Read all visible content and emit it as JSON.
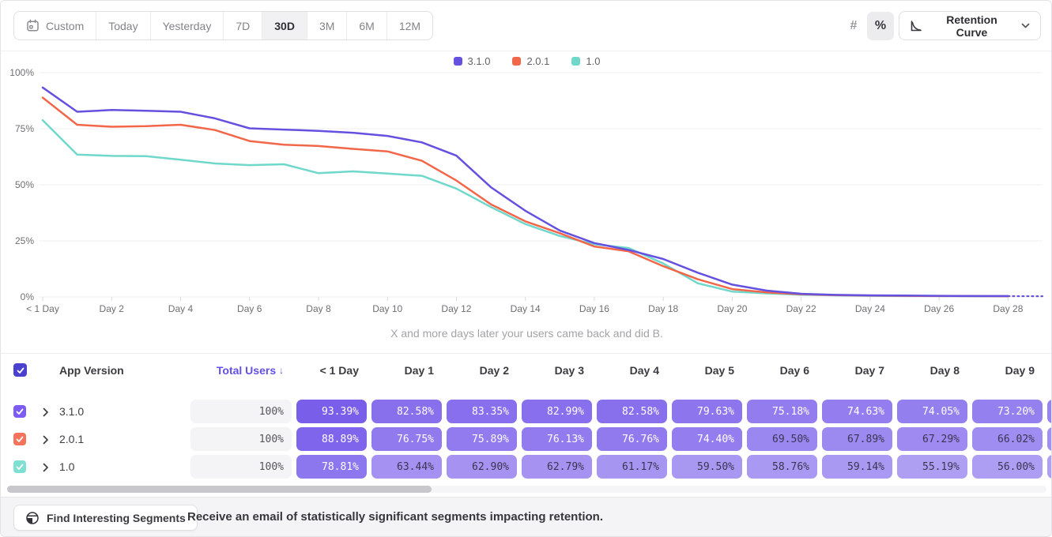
{
  "toolbar": {
    "date_ranges": [
      "Custom",
      "Today",
      "Yesterday",
      "7D",
      "30D",
      "3M",
      "6M",
      "12M"
    ],
    "selected_range": "30D",
    "unit_options": [
      "#",
      "%"
    ],
    "selected_unit": "%",
    "chart_type_label": "Retention Curve"
  },
  "chart_data": {
    "type": "line",
    "title": "",
    "caption": "X and more days later your users came back and did B.",
    "ylim": [
      0,
      100
    ],
    "y_tick_labels": [
      "0%",
      "25%",
      "50%",
      "75%",
      "100%"
    ],
    "x_tick_labels": [
      "< 1 Day",
      "Day 2",
      "Day 4",
      "Day 6",
      "Day 8",
      "Day 10",
      "Day 12",
      "Day 14",
      "Day 16",
      "Day 18",
      "Day 20",
      "Day 22",
      "Day 24",
      "Day 26",
      "Day 28"
    ],
    "x_label_every_n_days": 2,
    "num_days": 30,
    "grid": true,
    "legend_position": "top-center",
    "last_segment_dashed": true,
    "series": [
      {
        "name": "3.1.0",
        "color": "#6451E0",
        "values": [
          93.39,
          82.58,
          83.35,
          82.99,
          82.58,
          79.63,
          75.18,
          74.63,
          74.05,
          73.2,
          71.8,
          68.9,
          63.0,
          48.9,
          38.4,
          29.6,
          24.0,
          20.9,
          16.9,
          10.8,
          5.5,
          2.8,
          1.4,
          0.9,
          0.7,
          0.6,
          0.5,
          0.4,
          0.4,
          0.3
        ]
      },
      {
        "name": "2.0.1",
        "color": "#F2664A",
        "values": [
          88.89,
          76.75,
          75.89,
          76.13,
          76.76,
          74.4,
          69.5,
          67.89,
          67.29,
          66.02,
          64.9,
          60.7,
          51.9,
          41.3,
          33.7,
          28.4,
          22.5,
          20.3,
          13.7,
          7.9,
          3.5,
          2.0,
          1.2,
          0.8,
          0.6,
          0.5,
          0.4,
          0.4,
          0.3,
          0.3
        ]
      },
      {
        "name": "1.0",
        "color": "#70D8CB",
        "values": [
          78.81,
          63.44,
          62.9,
          62.79,
          61.17,
          59.5,
          58.76,
          59.14,
          55.19,
          56.0,
          55.0,
          54.0,
          48.3,
          40.1,
          32.5,
          27.2,
          23.5,
          21.8,
          14.9,
          6.1,
          2.4,
          1.6,
          1.0,
          0.7,
          0.5,
          0.4,
          0.4,
          0.3,
          0.3,
          0.3
        ]
      }
    ]
  },
  "table": {
    "app_version_header": "App Version",
    "total_users_header": "Total Users",
    "sort_indicator": "↓",
    "total_users_header_color": "#6350E8",
    "day_headers": [
      "< 1 Day",
      "Day 1",
      "Day 2",
      "Day 3",
      "Day 4",
      "Day 5",
      "Day 6",
      "Day 7",
      "Day 8",
      "Day 9"
    ],
    "header_checkbox_color": "#4B41CF",
    "cell_base_color_rgb": [
      111,
      82,
      233
    ],
    "rows": [
      {
        "version": "3.1.0",
        "checkbox_color": "#7C5CF5",
        "total_users": "100%",
        "retention": [
          "93.39%",
          "82.58%",
          "83.35%",
          "82.99%",
          "82.58%",
          "79.63%",
          "75.18%",
          "74.63%",
          "74.05%",
          "73.20%"
        ]
      },
      {
        "version": "2.0.1",
        "checkbox_color": "#F4735A",
        "total_users": "100%",
        "retention": [
          "88.89%",
          "76.75%",
          "75.89%",
          "76.13%",
          "76.76%",
          "74.40%",
          "69.50%",
          "67.89%",
          "67.29%",
          "66.02%"
        ]
      },
      {
        "version": "1.0",
        "checkbox_color": "#7EE0D2",
        "total_users": "100%",
        "retention": [
          "78.81%",
          "63.44%",
          "62.90%",
          "62.79%",
          "61.17%",
          "59.50%",
          "58.76%",
          "59.14%",
          "55.19%",
          "56.00%"
        ]
      }
    ]
  },
  "footer": {
    "button_label": "Find Interesting Segments",
    "message": "Receive an email of statistically significant segments impacting retention."
  }
}
